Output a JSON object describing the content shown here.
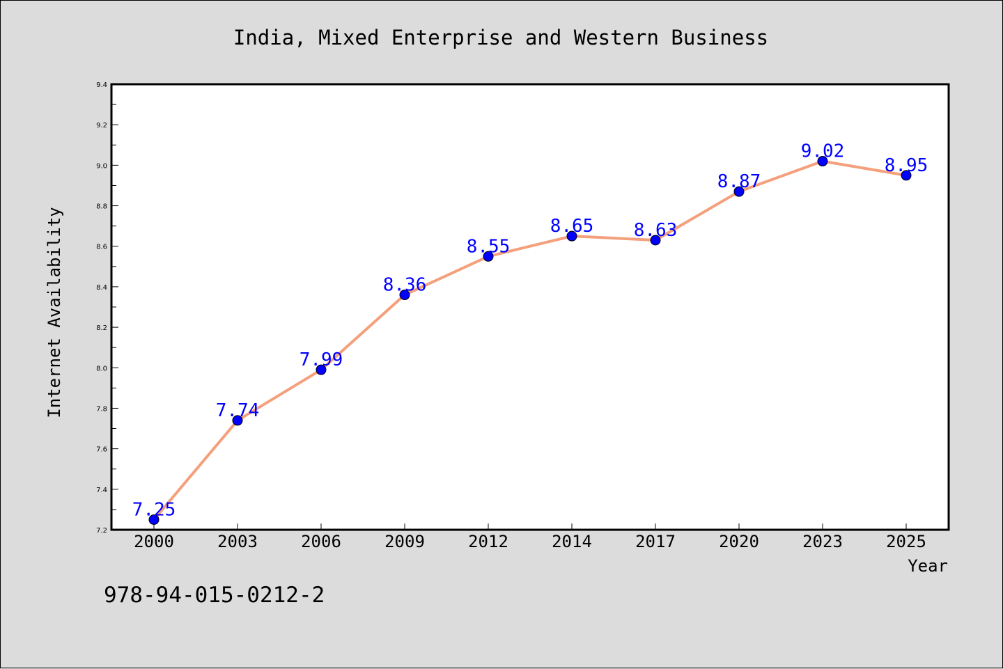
{
  "chart_data": {
    "type": "line",
    "title": "India, Mixed Enterprise and Western Business",
    "xlabel": "Year",
    "ylabel": "Internet Availability",
    "categories": [
      "2000",
      "2003",
      "2006",
      "2009",
      "2012",
      "2014",
      "2017",
      "2020",
      "2023",
      "2025"
    ],
    "series": [
      {
        "values": [
          7.25,
          7.74,
          7.99,
          8.36,
          8.55,
          8.65,
          8.63,
          8.87,
          9.02,
          8.95
        ],
        "line_color": "#f4a07c",
        "marker_color": "#0000ff"
      }
    ],
    "data_labels": [
      "7.25",
      "7.74",
      "7.99",
      "8.36",
      "8.55",
      "8.65",
      "8.63",
      "8.87",
      "9.02",
      "8.95"
    ],
    "ylim": [
      7.2,
      9.4
    ],
    "yticks": [
      "7.2",
      "7.4",
      "7.6",
      "7.8",
      "8.0",
      "8.2",
      "8.4",
      "8.6",
      "8.8",
      "9.0",
      "9.2",
      "9.4"
    ],
    "grid": false,
    "legend": "none"
  },
  "footer": {
    "isbn": "978-94-015-0212-2"
  }
}
